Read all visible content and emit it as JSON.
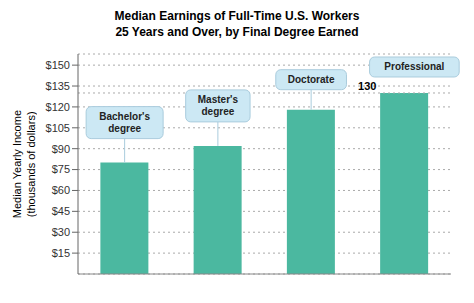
{
  "chart_data": {
    "type": "bar",
    "title": "Median Earnings of Full-Time U.S. Workers\n25 Years and Over, by Final Degree Earned",
    "y_label": "Median Yearly Income\n(thousands of dollars)",
    "categories": [
      null,
      null,
      null,
      null
    ],
    "values": [
      80,
      92,
      118,
      130
    ],
    "color": "#4bb8a0",
    "ylim": [
      0,
      158
    ],
    "yticks": [
      {
        "value": 15,
        "label": "$15"
      },
      {
        "value": 30,
        "label": "$30"
      },
      {
        "value": 45,
        "label": "$45"
      },
      {
        "value": 60,
        "label": "$60"
      },
      {
        "value": 75,
        "label": "$75"
      },
      {
        "value": 90,
        "label": "$90"
      },
      {
        "value": 105,
        "label": "$105"
      },
      {
        "value": 120,
        "label": "$120"
      },
      {
        "value": 135,
        "label": "$135"
      },
      {
        "value": 150,
        "label": "$150"
      }
    ],
    "grid": true,
    "tick_labels": "y",
    "annotations": [
      {
        "text": "Bachelor's\ndegree",
        "x": 0,
        "y": 80
      },
      {
        "text": "Master's\ndegree",
        "x": 1,
        "y": 92
      },
      {
        "text": "Doctorate",
        "x": 2,
        "y": 118
      },
      {
        "text": "Professional",
        "x": 3,
        "y": 130
      },
      {
        "text": "130",
        "x": 3,
        "y": 130,
        "line_style": "dotted"
      }
    ]
  }
}
